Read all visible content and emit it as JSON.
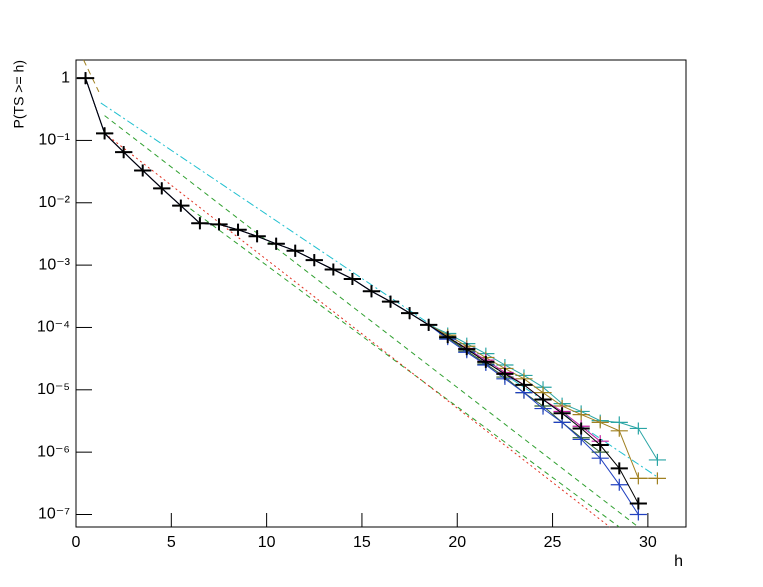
{
  "chart_data": {
    "type": "line",
    "x_label": "h",
    "y_label": "P(TS >= h)",
    "log_y": true,
    "xlim": [
      0,
      32
    ],
    "ylim": [
      6.3e-08,
      1.95
    ],
    "xticks": [
      0,
      5,
      10,
      15,
      20,
      25,
      30
    ],
    "yticks": [
      1,
      {
        "value": 0.1,
        "label": "10⁻¹"
      },
      {
        "value": 0.01,
        "label": "10⁻²"
      },
      {
        "value": 0.001,
        "label": "10⁻³"
      },
      {
        "value": 0.0001,
        "label": "10⁻⁴"
      },
      {
        "value": 1e-05,
        "label": "10⁻⁵"
      },
      {
        "value": 1e-06,
        "label": "10⁻⁶"
      },
      {
        "value": 1e-07,
        "label": "10⁻⁷"
      }
    ],
    "x": [
      0.5,
      1.5,
      2.5,
      3.5,
      4.5,
      5.5,
      6.5,
      7.5,
      8.5,
      9.5,
      10.5,
      11.5,
      12.5,
      13.5,
      14.5,
      15.5,
      16.5,
      17.5,
      18.5,
      19.5,
      20.5,
      21.5,
      22.5,
      23.5,
      24.5,
      25.5,
      26.5,
      27.5,
      28.5,
      29.5,
      30.5
    ],
    "series": [
      {
        "color": "#2aa5a5",
        "values": [
          1,
          0.13,
          0.065,
          0.033,
          0.017,
          0.009,
          0.0047,
          0.0045,
          0.0037,
          0.0029,
          0.0022,
          0.0017,
          0.0012,
          0.00085,
          0.0006,
          0.00038,
          0.00026,
          0.00017,
          0.00011,
          8e-05,
          5.5e-05,
          3.8e-05,
          2.5e-05,
          1.7e-05,
          1.1e-05,
          6e-06,
          4.5e-06,
          3.2e-06,
          3e-06,
          2.4e-06,
          7.5e-07
        ]
      },
      {
        "color": "#a08020",
        "values": [
          1,
          0.13,
          0.065,
          0.033,
          0.017,
          0.009,
          0.0047,
          0.0045,
          0.0037,
          0.0029,
          0.0022,
          0.0017,
          0.0012,
          0.00085,
          0.0006,
          0.00038,
          0.00026,
          0.00017,
          0.00011,
          7.5e-05,
          5e-05,
          3.3e-05,
          2.2e-05,
          1.5e-05,
          9e-06,
          5.5e-06,
          4e-06,
          3e-06,
          2.2e-06,
          3.8e-07,
          3.8e-07
        ]
      },
      {
        "color": "#c020a0",
        "values": [
          1,
          0.13,
          0.065,
          0.033,
          0.017,
          0.009,
          0.0047,
          0.0045,
          0.0037,
          0.0029,
          0.0022,
          0.0017,
          0.0012,
          0.00085,
          0.0006,
          0.00038,
          0.00026,
          0.00017,
          0.00011,
          7e-05,
          4.6e-05,
          3e-05,
          1.9e-05,
          1.2e-05,
          7e-06,
          4.5e-06,
          2.6e-06,
          1.5e-06,
          null,
          null,
          null
        ]
      },
      {
        "color": "#306030",
        "values": [
          1,
          0.13,
          0.065,
          0.033,
          0.017,
          0.009,
          0.0047,
          0.0045,
          0.0037,
          0.0029,
          0.0022,
          0.0017,
          0.0012,
          0.00085,
          0.0006,
          0.00038,
          0.00026,
          0.00017,
          0.00011,
          6.8e-05,
          4.2e-05,
          2.6e-05,
          1.6e-05,
          9e-06,
          5.5e-06,
          3e-06,
          1.7e-06,
          1e-06,
          null,
          null,
          null
        ]
      },
      {
        "color": "#2040c0",
        "values": [
          1,
          0.13,
          0.065,
          0.033,
          0.017,
          0.009,
          0.0047,
          0.0045,
          0.0037,
          0.0029,
          0.0022,
          0.0017,
          0.0012,
          0.00085,
          0.0006,
          0.00038,
          0.00026,
          0.00017,
          0.00011,
          6.5e-05,
          4e-05,
          2.5e-05,
          1.5e-05,
          9e-06,
          5e-06,
          3e-06,
          1.6e-06,
          8e-07,
          3e-07,
          1e-07,
          null
        ]
      },
      {
        "color": "#000000",
        "values": [
          1,
          0.13,
          0.065,
          0.033,
          0.017,
          0.009,
          0.0047,
          0.0045,
          0.0037,
          0.0029,
          0.0022,
          0.0017,
          0.0012,
          0.00085,
          0.0006,
          0.00038,
          0.00026,
          0.00017,
          0.00011,
          7e-05,
          4.5e-05,
          2.8e-05,
          1.8e-05,
          1.2e-05,
          7e-06,
          4.2e-06,
          2.4e-06,
          1.3e-06,
          5.5e-07,
          1.5e-07,
          null
        ]
      }
    ],
    "reference_lines": [
      {
        "color": "#a08020",
        "dash": "6,4",
        "x": [
          0.4,
          1.2
        ],
        "values": [
          1.95,
          0.6
        ]
      },
      {
        "color": "#20c0d0",
        "dash": "8,3,2,3",
        "x": [
          1.3,
          30.5
        ],
        "values": [
          0.4,
          4e-07
        ]
      },
      {
        "color": "#30a030",
        "dash": "5,4",
        "x": [
          1.5,
          29.5
        ],
        "values": [
          0.25,
          6.3e-08
        ]
      },
      {
        "color": "#30a030",
        "dash": "5,4",
        "x": [
          6,
          28.5
        ],
        "values": [
          0.008,
          6.3e-08
        ]
      },
      {
        "color": "#e03020",
        "dash": "2,3",
        "x": [
          1.5,
          28
        ],
        "values": [
          0.13,
          6.3e-08
        ]
      }
    ]
  }
}
